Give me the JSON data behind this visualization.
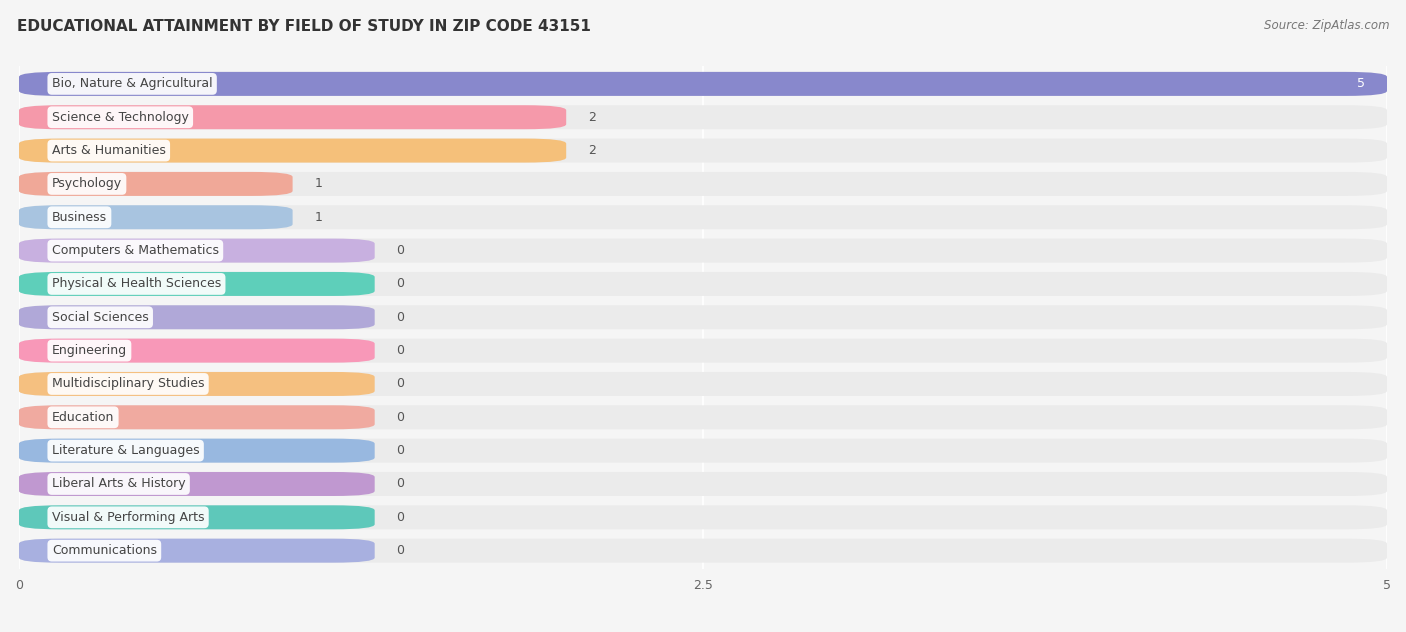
{
  "title": "EDUCATIONAL ATTAINMENT BY FIELD OF STUDY IN ZIP CODE 43151",
  "source": "Source: ZipAtlas.com",
  "categories": [
    "Bio, Nature & Agricultural",
    "Science & Technology",
    "Arts & Humanities",
    "Psychology",
    "Business",
    "Computers & Mathematics",
    "Physical & Health Sciences",
    "Social Sciences",
    "Engineering",
    "Multidisciplinary Studies",
    "Education",
    "Literature & Languages",
    "Liberal Arts & History",
    "Visual & Performing Arts",
    "Communications"
  ],
  "values": [
    5,
    2,
    2,
    1,
    1,
    0,
    0,
    0,
    0,
    0,
    0,
    0,
    0,
    0,
    0
  ],
  "bar_colors": [
    "#8888cc",
    "#f599aa",
    "#f5c07a",
    "#f0a898",
    "#a8c4e0",
    "#c8b0e0",
    "#5ecfba",
    "#b0a8d8",
    "#f898b8",
    "#f5c080",
    "#f0aaa0",
    "#98b8e0",
    "#c098d0",
    "#5ec8ba",
    "#a8b0e0"
  ],
  "xlim": [
    0,
    5
  ],
  "xticks": [
    0,
    2.5,
    5
  ],
  "background_color": "#f5f5f5",
  "row_bg_color": "#ebebeb",
  "title_fontsize": 11,
  "bar_label_fontsize": 9,
  "category_fontsize": 9,
  "zero_bar_width": 1.3
}
